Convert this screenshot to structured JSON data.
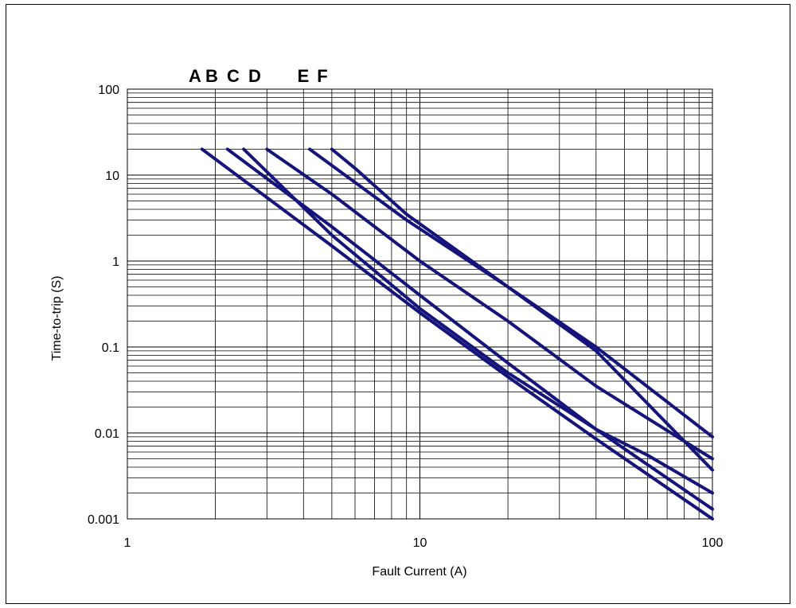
{
  "chart_data": {
    "type": "line",
    "title": "",
    "xlabel": "Fault Current (A)",
    "ylabel": "Time-to-trip (S)",
    "xscale": "log",
    "yscale": "log",
    "xlim": [
      1,
      100
    ],
    "ylim": [
      0.001,
      100
    ],
    "grid": true,
    "x_tick_labels": [
      "1",
      "10",
      "100"
    ],
    "y_tick_labels": [
      "100",
      "10",
      "1",
      "0.1",
      "0.01",
      "0.001"
    ],
    "curve_labels": [
      "A",
      "B",
      "C",
      "D",
      "E",
      "F"
    ],
    "line_color": "#14147a",
    "series": [
      {
        "name": "A",
        "points": [
          [
            1.8,
            20
          ],
          [
            5,
            1.5
          ],
          [
            10,
            0.25
          ],
          [
            20,
            0.045
          ],
          [
            40,
            0.0085
          ],
          [
            100,
            0.001
          ]
        ]
      },
      {
        "name": "B",
        "points": [
          [
            2.2,
            20
          ],
          [
            5,
            2.5
          ],
          [
            10,
            0.4
          ],
          [
            20,
            0.065
          ],
          [
            40,
            0.011
          ],
          [
            100,
            0.0013
          ]
        ]
      },
      {
        "name": "C",
        "points": [
          [
            2.5,
            20
          ],
          [
            5,
            2
          ],
          [
            10,
            0.28
          ],
          [
            20,
            0.05
          ],
          [
            40,
            0.011
          ],
          [
            60,
            0.0055
          ],
          [
            100,
            0.002
          ]
        ]
      },
      {
        "name": "D",
        "points": [
          [
            3,
            20
          ],
          [
            5,
            6
          ],
          [
            10,
            1
          ],
          [
            20,
            0.2
          ],
          [
            40,
            0.035
          ],
          [
            100,
            0.005
          ]
        ]
      },
      {
        "name": "E",
        "points": [
          [
            4.2,
            20
          ],
          [
            9,
            3
          ],
          [
            20,
            0.5
          ],
          [
            40,
            0.09
          ],
          [
            100,
            0.0037
          ]
        ]
      },
      {
        "name": "F",
        "points": [
          [
            5,
            20
          ],
          [
            6,
            12
          ],
          [
            9,
            3.5
          ],
          [
            20,
            0.5
          ],
          [
            40,
            0.1
          ],
          [
            100,
            0.009
          ]
        ]
      }
    ]
  }
}
